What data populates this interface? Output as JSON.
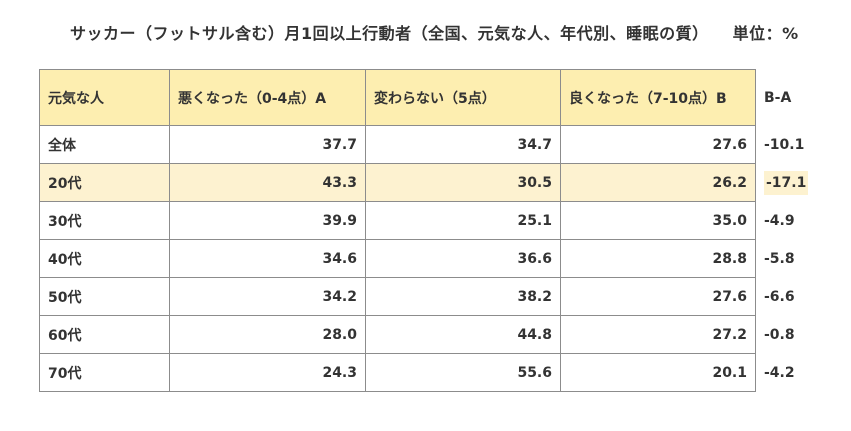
{
  "title": {
    "main": "サッカー（フットサル含む）月1回以上行動者（全国、元気な人、年代別、睡眠の質）",
    "unit": "単位：%"
  },
  "table": {
    "headers": [
      "元気な人",
      "悪くなった（0-4点）A",
      "変わらない（5点）",
      "良くなった（7-10点）B",
      "B-A"
    ],
    "rows": [
      {
        "label": "全体",
        "a": "37.7",
        "same": "34.7",
        "b": "27.6",
        "diff": "-10.1",
        "highlight": false
      },
      {
        "label": "20代",
        "a": "43.3",
        "same": "30.5",
        "b": "26.2",
        "diff": "-17.1",
        "highlight": true
      },
      {
        "label": "30代",
        "a": "39.9",
        "same": "25.1",
        "b": "35.0",
        "diff": "-4.9",
        "highlight": false
      },
      {
        "label": "40代",
        "a": "34.6",
        "same": "36.6",
        "b": "28.8",
        "diff": "-5.8",
        "highlight": false
      },
      {
        "label": "50代",
        "a": "34.2",
        "same": "38.2",
        "b": "27.6",
        "diff": "-6.6",
        "highlight": false
      },
      {
        "label": "60代",
        "a": "28.0",
        "same": "44.8",
        "b": "27.2",
        "diff": "-0.8",
        "highlight": false
      },
      {
        "label": "70代",
        "a": "24.3",
        "same": "55.6",
        "b": "20.1",
        "diff": "-4.2",
        "highlight": false
      }
    ]
  },
  "colors": {
    "header_bg": "#fdeeb0",
    "highlight_bg": "#fdf2d0",
    "border": "#8c8c8c"
  }
}
